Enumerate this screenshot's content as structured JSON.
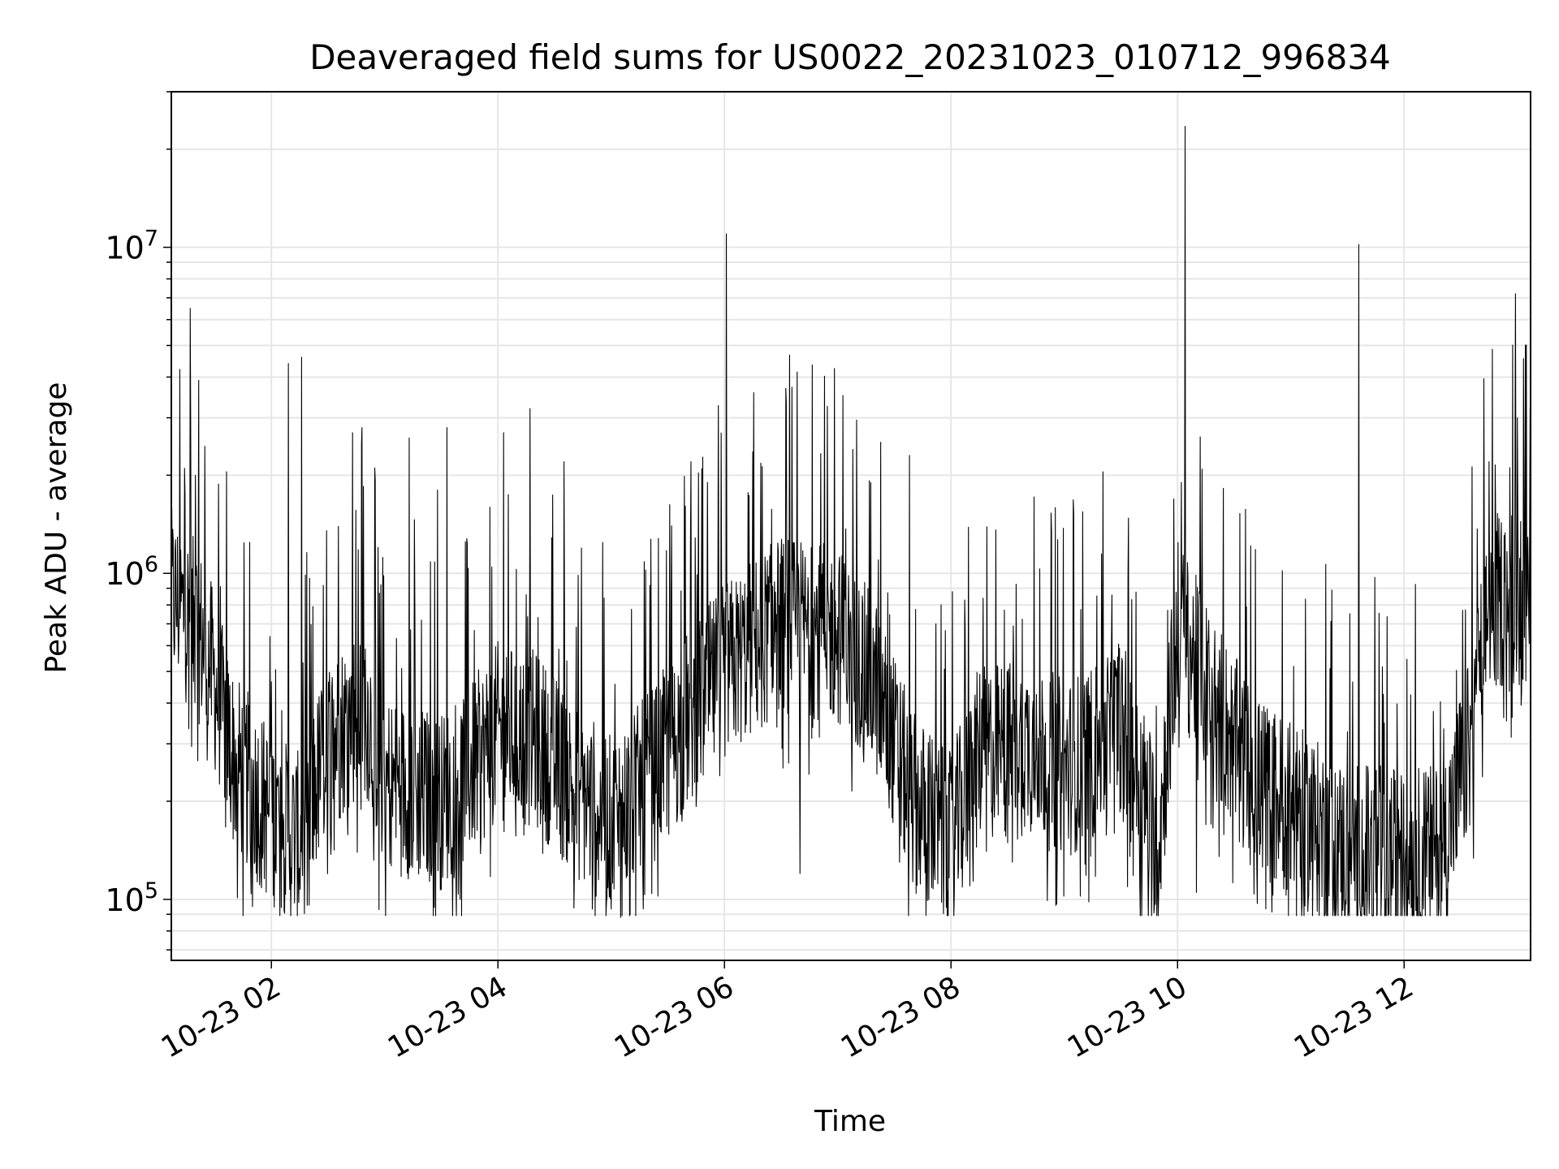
{
  "chart_data": {
    "type": "line",
    "title": "Deaveraged field sums for US0022_20231023_010712_996834",
    "xlabel": "Time",
    "ylabel": "Peak ADU - average",
    "x_range": [
      "2023-10-23 01:07",
      "2023-10-23 13:07"
    ],
    "x_ticks": [
      {
        "t": "2023-10-23 02:00",
        "label": "10-23 02"
      },
      {
        "t": "2023-10-23 04:00",
        "label": "10-23 04"
      },
      {
        "t": "2023-10-23 06:00",
        "label": "10-23 06"
      },
      {
        "t": "2023-10-23 08:00",
        "label": "10-23 08"
      },
      {
        "t": "2023-10-23 10:00",
        "label": "10-23 10"
      },
      {
        "t": "2023-10-23 12:00",
        "label": "10-23 12"
      }
    ],
    "y_scale": "log",
    "ylim": [
      65000,
      30000000
    ],
    "y_ticks": [
      {
        "value": 100000,
        "base": "10",
        "exp": "5"
      },
      {
        "value": 1000000,
        "base": "10",
        "exp": "6"
      },
      {
        "value": 10000000,
        "base": "10",
        "exp": "7"
      }
    ],
    "grid": true,
    "legend": "none",
    "colors": {
      "line": "#000000",
      "grid": "#e6e6e6",
      "axes": "#000000"
    },
    "baseline": [
      [
        "2023-10-23 01:07",
        850000
      ],
      [
        "2023-10-23 01:15",
        750000
      ],
      [
        "2023-10-23 01:25",
        600000
      ],
      [
        "2023-10-23 01:40",
        270000
      ],
      [
        "2023-10-23 02:00",
        180000
      ],
      [
        "2023-10-23 02:15",
        150000
      ],
      [
        "2023-10-23 02:30",
        300000
      ],
      [
        "2023-10-23 02:50",
        400000
      ],
      [
        "2023-10-23 03:00",
        230000
      ],
      [
        "2023-10-23 03:30",
        200000
      ],
      [
        "2023-10-23 03:50",
        270000
      ],
      [
        "2023-10-23 04:00",
        330000
      ],
      [
        "2023-10-23 04:20",
        310000
      ],
      [
        "2023-10-23 04:40",
        220000
      ],
      [
        "2023-10-23 05:00",
        170000
      ],
      [
        "2023-10-23 05:20",
        230000
      ],
      [
        "2023-10-23 05:40",
        350000
      ],
      [
        "2023-10-23 06:00",
        500000
      ],
      [
        "2023-10-23 06:30",
        700000
      ],
      [
        "2023-10-23 07:00",
        650000
      ],
      [
        "2023-10-23 07:20",
        450000
      ],
      [
        "2023-10-23 07:40",
        200000
      ],
      [
        "2023-10-23 08:00",
        150000
      ],
      [
        "2023-10-23 08:15",
        280000
      ],
      [
        "2023-10-23 08:45",
        300000
      ],
      [
        "2023-10-23 09:00",
        250000
      ],
      [
        "2023-10-23 09:15",
        280000
      ],
      [
        "2023-10-23 09:30",
        350000
      ],
      [
        "2023-10-23 09:50",
        150000
      ],
      [
        "2023-10-23 10:00",
        700000
      ],
      [
        "2023-10-23 10:15",
        450000
      ],
      [
        "2023-10-23 10:40",
        230000
      ],
      [
        "2023-10-23 11:10",
        170000
      ],
      [
        "2023-10-23 11:30",
        140000
      ],
      [
        "2023-10-23 12:00",
        135000
      ],
      [
        "2023-10-23 12:20",
        140000
      ],
      [
        "2023-10-23 12:35",
        300000
      ],
      [
        "2023-10-23 12:45",
        800000
      ],
      [
        "2023-10-23 13:07",
        900000
      ]
    ],
    "spikes": [
      [
        "2023-10-23 01:17",
        6500000
      ],
      [
        "2023-10-23 01:14",
        2100000
      ],
      [
        "2023-10-23 02:09",
        4400000
      ],
      [
        "2023-10-23 02:16",
        4600000
      ],
      [
        "2023-10-23 02:43",
        2700000
      ],
      [
        "2023-10-23 02:48",
        2800000
      ],
      [
        "2023-10-23 03:13",
        2600000
      ],
      [
        "2023-10-23 03:28",
        1800000
      ],
      [
        "2023-10-23 03:33",
        2800000
      ],
      [
        "2023-10-23 04:03",
        2700000
      ],
      [
        "2023-10-23 04:17",
        3200000
      ],
      [
        "2023-10-23 04:35",
        2200000
      ],
      [
        "2023-10-23 06:01",
        11000000
      ],
      [
        "2023-10-23 05:51",
        1900000
      ],
      [
        "2023-10-23 07:08",
        2400000
      ],
      [
        "2023-10-23 07:38",
        2300000
      ],
      [
        "2023-10-23 10:04",
        23500000
      ],
      [
        "2023-10-23 10:02",
        1900000
      ],
      [
        "2023-10-23 11:36",
        10200000
      ],
      [
        "2023-10-23 12:45",
        2200000
      ],
      [
        "2023-10-23 12:59",
        7200000
      ],
      [
        "2023-10-23 13:00",
        3000000
      ]
    ],
    "dips": [
      [
        "2023-10-23 01:50",
        95000
      ],
      [
        "2023-10-23 02:20",
        96000
      ],
      [
        "2023-10-23 02:57",
        93000
      ],
      [
        "2023-10-23 03:40",
        100000
      ],
      [
        "2023-10-23 05:05",
        88000
      ],
      [
        "2023-10-23 05:10",
        90000
      ],
      [
        "2023-10-23 06:40",
        120000
      ],
      [
        "2023-10-23 08:10",
        110000
      ],
      [
        "2023-10-23 10:10",
        105000
      ],
      [
        "2023-10-23 11:38",
        95000
      ],
      [
        "2023-10-23 12:00",
        98000
      ]
    ]
  }
}
